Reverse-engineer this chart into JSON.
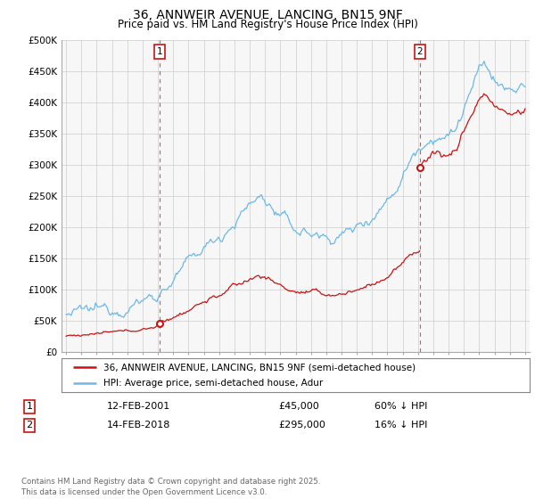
{
  "title_line1": "36, ANNWEIR AVENUE, LANCING, BN15 9NF",
  "title_line2": "Price paid vs. HM Land Registry's House Price Index (HPI)",
  "ylim": [
    0,
    500000
  ],
  "yticks": [
    0,
    50000,
    100000,
    150000,
    200000,
    250000,
    300000,
    350000,
    400000,
    450000,
    500000
  ],
  "ytick_labels": [
    "£0",
    "£50K",
    "£100K",
    "£150K",
    "£200K",
    "£250K",
    "£300K",
    "£350K",
    "£400K",
    "£450K",
    "£500K"
  ],
  "hpi_color": "#6db8e8",
  "price_color": "#cc1111",
  "dashed_color": "#cc1111",
  "sale1_year": 2001.12,
  "sale1_price": 45000,
  "sale2_year": 2018.12,
  "sale2_price": 295000,
  "legend_line1": "36, ANNWEIR AVENUE, LANCING, BN15 9NF (semi-detached house)",
  "legend_line2": "HPI: Average price, semi-detached house, Adur",
  "table_row1": [
    "1",
    "12-FEB-2001",
    "£45,000",
    "60% ↓ HPI"
  ],
  "table_row2": [
    "2",
    "14-FEB-2018",
    "£295,000",
    "16% ↓ HPI"
  ],
  "footnote": "Contains HM Land Registry data © Crown copyright and database right 2025.\nThis data is licensed under the Open Government Licence v3.0.",
  "background_color": "#f7f7f7",
  "grid_color": "#cccccc",
  "xlim_left": 1994.7,
  "xlim_right": 2025.3
}
